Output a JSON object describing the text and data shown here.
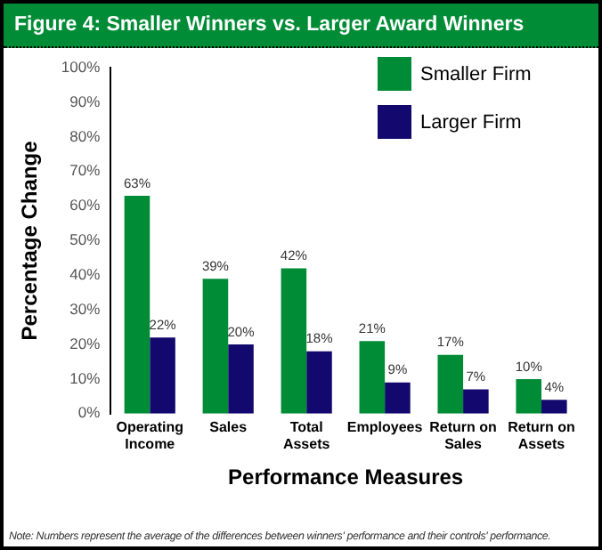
{
  "chart_data": {
    "type": "bar",
    "title": "Figure 4: Smaller Winners vs. Larger Award Winners",
    "xlabel": "Performance Measures",
    "ylabel": "Percentage Change",
    "categories": [
      "Operating Income",
      "Sales",
      "Total Assets",
      "Employees",
      "Return on Sales",
      "Return on Assets"
    ],
    "series": [
      {
        "name": "Smaller Firm",
        "color": "#008c36",
        "values": [
          63,
          39,
          42,
          21,
          17,
          10
        ],
        "value_labels": [
          "63%",
          "39%",
          "42%",
          "21%",
          "17%",
          "10%"
        ]
      },
      {
        "name": "Larger Firm",
        "color": "#12086e",
        "values": [
          22,
          20,
          18,
          9,
          7,
          4
        ],
        "value_labels": [
          "22%",
          "20%",
          "18%",
          "9%",
          "7%",
          "4%"
        ]
      }
    ],
    "ylim": [
      0,
      100
    ],
    "yticks": [
      {
        "value": 0,
        "label": "0%"
      },
      {
        "value": 10,
        "label": "10%"
      },
      {
        "value": 20,
        "label": "20%"
      },
      {
        "value": 30,
        "label": "30%"
      },
      {
        "value": 40,
        "label": "40%"
      },
      {
        "value": 50,
        "label": "50%"
      },
      {
        "value": 60,
        "label": "60%"
      },
      {
        "value": 70,
        "label": "70%"
      },
      {
        "value": 80,
        "label": "80%"
      },
      {
        "value": 90,
        "label": "90%"
      },
      {
        "value": 100,
        "label": "100%"
      }
    ],
    "grid": false,
    "legend": "top right",
    "annotations": [
      "Note: Numbers represent the average of the differences between winners' performance and their controls' performance."
    ]
  }
}
